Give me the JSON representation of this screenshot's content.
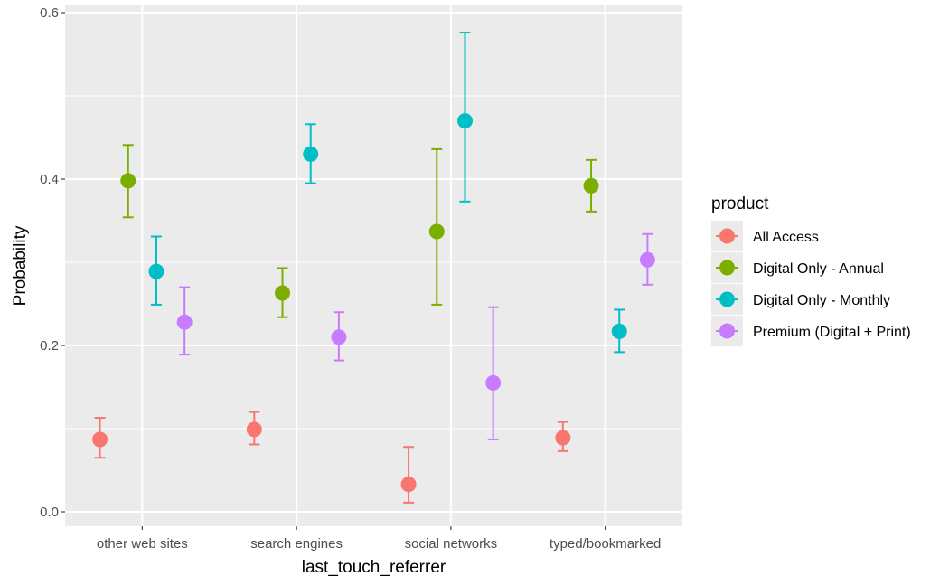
{
  "chart_data": {
    "type": "scatter",
    "subtype": "point-with-errorbars (dodged)",
    "xlabel": "last_touch_referrer",
    "ylabel": "Probability",
    "categories": [
      "other web sites",
      "search engines",
      "social networks",
      "typed/bookmarked"
    ],
    "ylim": [
      -0.015,
      0.605
    ],
    "yticks": [
      0.0,
      0.2,
      0.4,
      0.6
    ],
    "ytick_labels": [
      "0.0",
      "0.2",
      "0.4",
      "0.6"
    ],
    "grid": true,
    "background": "#ebebeb",
    "legend": {
      "title": "product",
      "position": "right"
    },
    "series": [
      {
        "name": "All Access",
        "color": "#F8766D",
        "values": [
          0.087,
          0.099,
          0.033,
          0.089
        ],
        "lower": [
          0.065,
          0.081,
          0.011,
          0.073
        ],
        "upper": [
          0.113,
          0.12,
          0.078,
          0.108
        ]
      },
      {
        "name": "Digital Only - Annual",
        "color": "#7CAE00",
        "values": [
          0.398,
          0.263,
          0.337,
          0.392
        ],
        "lower": [
          0.354,
          0.234,
          0.249,
          0.361
        ],
        "upper": [
          0.441,
          0.293,
          0.436,
          0.423
        ]
      },
      {
        "name": "Digital Only - Monthly",
        "color": "#00BFC4",
        "values": [
          0.289,
          0.43,
          0.47,
          0.217
        ],
        "lower": [
          0.249,
          0.395,
          0.373,
          0.192
        ],
        "upper": [
          0.331,
          0.466,
          0.576,
          0.243
        ]
      },
      {
        "name": "Premium (Digital + Print)",
        "color": "#C77CFF",
        "values": [
          0.228,
          0.21,
          0.155,
          0.303
        ],
        "lower": [
          0.189,
          0.182,
          0.087,
          0.273
        ],
        "upper": [
          0.27,
          0.24,
          0.246,
          0.334
        ]
      }
    ]
  }
}
